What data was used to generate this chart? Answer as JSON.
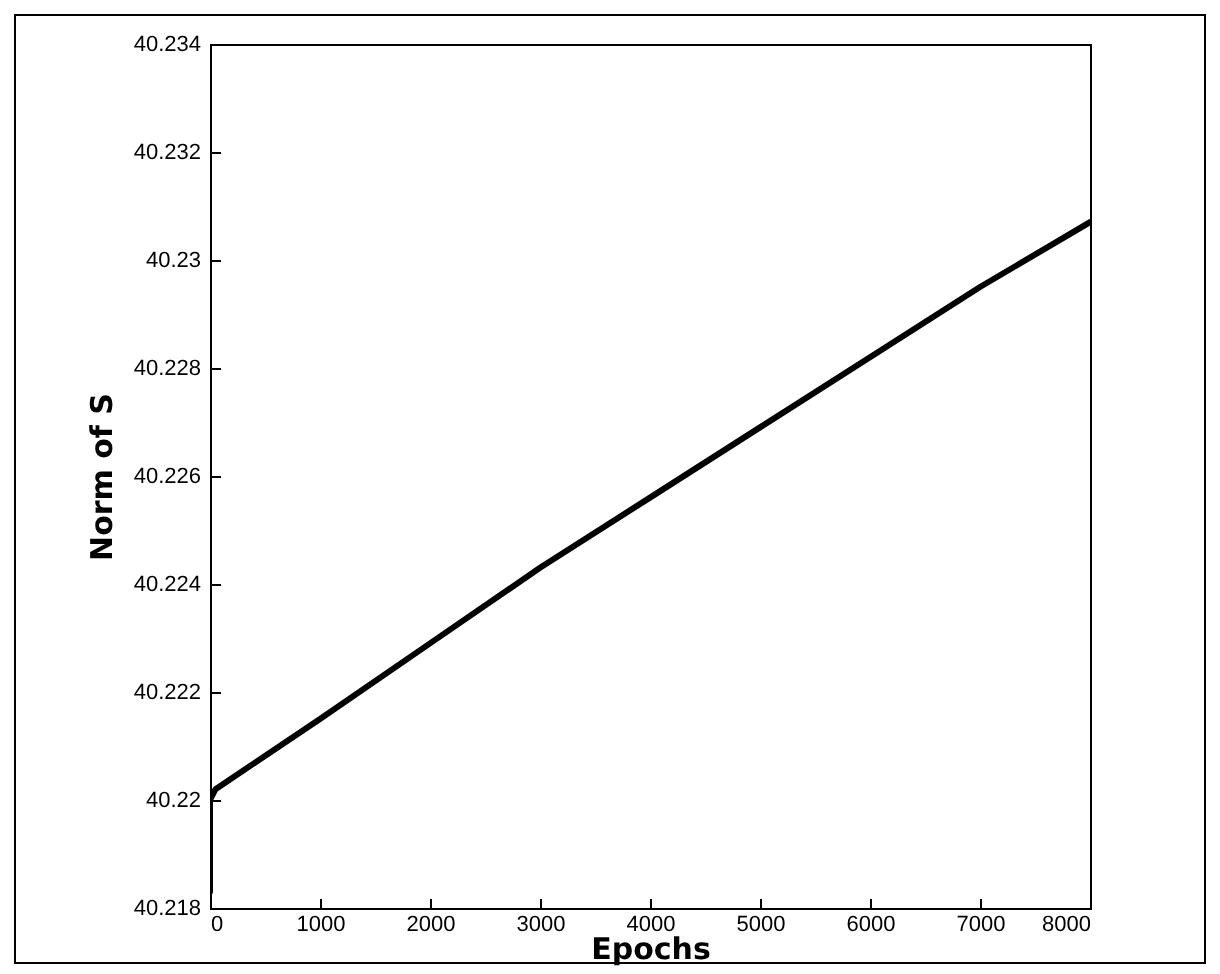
{
  "chart_data": {
    "type": "line",
    "xlabel": "Epochs",
    "ylabel": "Norm of S",
    "x": [
      0,
      0,
      50,
      1000,
      2000,
      3000,
      4000,
      5000,
      6000,
      7000,
      8000
    ],
    "series": [
      {
        "color": "#000000",
        "values": [
          40.2183,
          40.22,
          40.2202,
          40.2215,
          40.2229,
          40.2243,
          40.2256,
          40.2269,
          40.2282,
          40.2295,
          40.2307
        ]
      }
    ],
    "xlim": [
      0,
      8000
    ],
    "xticks": [
      0,
      1000,
      2000,
      3000,
      4000,
      5000,
      6000,
      7000,
      8000
    ],
    "ylim": [
      40.218,
      40.234
    ],
    "yticks": [
      40.218,
      40.22,
      40.222,
      40.224,
      40.226,
      40.228,
      40.23,
      40.232,
      40.234
    ],
    "grid": false,
    "line_style": "solid"
  }
}
